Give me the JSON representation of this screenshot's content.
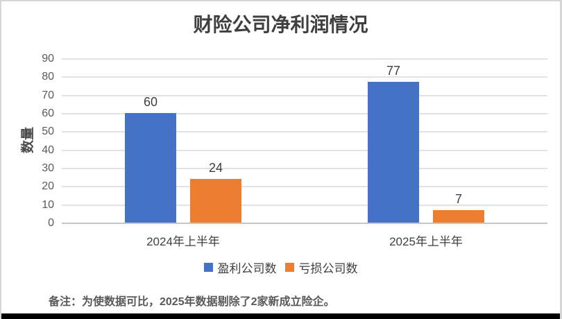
{
  "chart_data": {
    "type": "bar",
    "title": "财险公司净利润情况",
    "xlabel": "",
    "ylabel": "数量",
    "categories": [
      "2024年上半年",
      "2025年上半年"
    ],
    "series": [
      {
        "name": "盈利公司数",
        "color": "#4472C4",
        "values": [
          60,
          77
        ]
      },
      {
        "name": "亏损公司数",
        "color": "#ED7D31",
        "values": [
          24,
          7
        ]
      }
    ],
    "ylim": [
      0,
      90
    ],
    "ytick_step": 10,
    "grid": true,
    "legend_position": "bottom",
    "data_labels": true
  },
  "note": "备注：为使数据可比，2025年数据剔除了2家新成立险企。",
  "colors": {
    "title_text": "#3f3f3f",
    "axis_text": "#595959",
    "gridline": "#e2e2e2",
    "axis_line": "#c6c6c6",
    "frame_border": "#d6d6d6",
    "bottom_bar": "#000000"
  }
}
